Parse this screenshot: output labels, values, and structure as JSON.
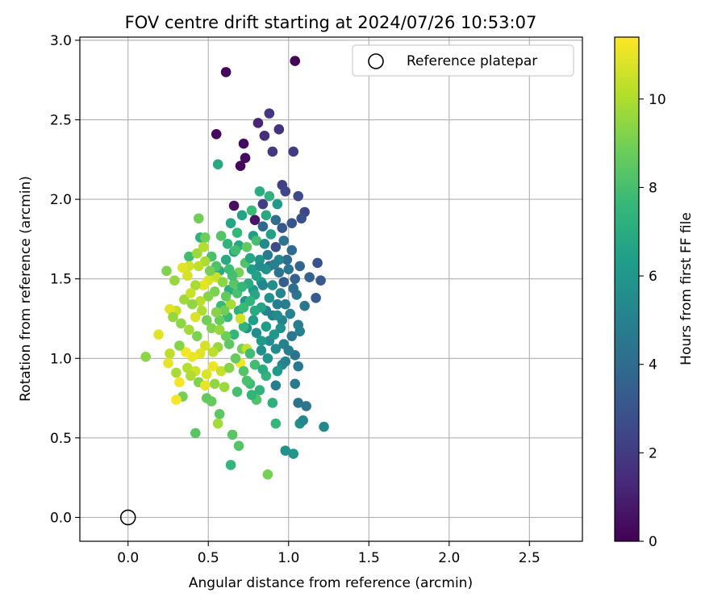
{
  "chart_data": {
    "type": "scatter",
    "title": "FOV centre drift starting at 2024/07/26 10:53:07",
    "xlabel": "Angular distance from reference (arcmin)",
    "ylabel": "Rotation from reference (arcmin)",
    "xlim": [
      -0.3,
      2.83
    ],
    "ylim": [
      -0.15,
      3.02
    ],
    "xticks": [
      0.0,
      0.5,
      1.0,
      1.5,
      2.0,
      2.5
    ],
    "xtick_labels": [
      "0.0",
      "0.5",
      "1.0",
      "1.5",
      "2.0",
      "2.5"
    ],
    "yticks": [
      0.0,
      0.5,
      1.0,
      1.5,
      2.0,
      2.5,
      3.0
    ],
    "ytick_labels": [
      "0.0",
      "0.5",
      "1.0",
      "1.5",
      "2.0",
      "2.5",
      "3.0"
    ],
    "grid": true,
    "legend": {
      "placement": "top-right",
      "entries": [
        "Reference platepar"
      ]
    },
    "reference_point": {
      "x": 0.0,
      "y": 0.0,
      "label": "Reference platepar"
    },
    "colorbar": {
      "label": "Hours from first FF file",
      "range": [
        0,
        11.4
      ],
      "ticks": [
        0,
        2,
        4,
        6,
        8,
        10
      ],
      "tick_labels": [
        "0",
        "2",
        "4",
        "6",
        "8",
        "10"
      ],
      "colormap": "viridis"
    },
    "points": [
      {
        "x": 1.04,
        "y": 2.87,
        "h": 0.1
      },
      {
        "x": 0.61,
        "y": 2.8,
        "h": 0.2
      },
      {
        "x": 0.55,
        "y": 2.41,
        "h": 0.3
      },
      {
        "x": 0.72,
        "y": 2.35,
        "h": 0.3
      },
      {
        "x": 0.73,
        "y": 2.26,
        "h": 0.4
      },
      {
        "x": 0.7,
        "y": 2.21,
        "h": 0.2
      },
      {
        "x": 0.66,
        "y": 1.96,
        "h": 0.5
      },
      {
        "x": 0.79,
        "y": 1.87,
        "h": 0.6
      },
      {
        "x": 0.81,
        "y": 2.48,
        "h": 1.2
      },
      {
        "x": 0.85,
        "y": 2.4,
        "h": 1.5
      },
      {
        "x": 0.94,
        "y": 2.44,
        "h": 1.6
      },
      {
        "x": 0.88,
        "y": 2.54,
        "h": 1.8
      },
      {
        "x": 0.9,
        "y": 2.3,
        "h": 1.9
      },
      {
        "x": 1.03,
        "y": 2.3,
        "h": 2.0
      },
      {
        "x": 0.96,
        "y": 2.09,
        "h": 2.2
      },
      {
        "x": 0.98,
        "y": 2.05,
        "h": 2.4
      },
      {
        "x": 1.06,
        "y": 2.02,
        "h": 2.6
      },
      {
        "x": 0.84,
        "y": 1.97,
        "h": 2.1
      },
      {
        "x": 1.1,
        "y": 1.92,
        "h": 2.5
      },
      {
        "x": 1.08,
        "y": 1.88,
        "h": 2.8
      },
      {
        "x": 1.02,
        "y": 1.85,
        "h": 3.0
      },
      {
        "x": 0.96,
        "y": 1.82,
        "h": 3.1
      },
      {
        "x": 0.92,
        "y": 1.7,
        "h": 2.7
      },
      {
        "x": 1.18,
        "y": 1.6,
        "h": 2.9
      },
      {
        "x": 1.2,
        "y": 1.49,
        "h": 3.2
      },
      {
        "x": 1.17,
        "y": 1.38,
        "h": 3.3
      },
      {
        "x": 1.13,
        "y": 1.51,
        "h": 3.5
      },
      {
        "x": 1.04,
        "y": 1.5,
        "h": 3.6
      },
      {
        "x": 0.97,
        "y": 1.48,
        "h": 3.4
      },
      {
        "x": 0.84,
        "y": 1.83,
        "h": 3.8
      },
      {
        "x": 0.99,
        "y": 1.62,
        "h": 4.0
      },
      {
        "x": 0.88,
        "y": 1.58,
        "h": 4.2
      },
      {
        "x": 0.94,
        "y": 1.54,
        "h": 4.4
      },
      {
        "x": 1.05,
        "y": 1.4,
        "h": 4.5
      },
      {
        "x": 1.1,
        "y": 1.33,
        "h": 4.6
      },
      {
        "x": 0.93,
        "y": 1.34,
        "h": 4.8
      },
      {
        "x": 0.86,
        "y": 1.3,
        "h": 5.0
      },
      {
        "x": 0.9,
        "y": 1.27,
        "h": 5.1
      },
      {
        "x": 0.96,
        "y": 1.24,
        "h": 5.2
      },
      {
        "x": 1.07,
        "y": 1.17,
        "h": 5.0
      },
      {
        "x": 1.04,
        "y": 1.02,
        "h": 4.3
      },
      {
        "x": 1.06,
        "y": 0.95,
        "h": 4.6
      },
      {
        "x": 1.04,
        "y": 0.84,
        "h": 4.7
      },
      {
        "x": 0.92,
        "y": 0.83,
        "h": 4.9
      },
      {
        "x": 1.06,
        "y": 0.72,
        "h": 4.4
      },
      {
        "x": 1.11,
        "y": 0.7,
        "h": 4.5
      },
      {
        "x": 1.22,
        "y": 0.57,
        "h": 5.4
      },
      {
        "x": 1.07,
        "y": 0.59,
        "h": 5.6
      },
      {
        "x": 1.09,
        "y": 0.61,
        "h": 5.3
      },
      {
        "x": 0.98,
        "y": 0.42,
        "h": 5.8
      },
      {
        "x": 1.03,
        "y": 0.4,
        "h": 5.9
      },
      {
        "x": 0.96,
        "y": 0.96,
        "h": 5.4
      },
      {
        "x": 0.88,
        "y": 1.11,
        "h": 5.5
      },
      {
        "x": 0.83,
        "y": 1.05,
        "h": 5.7
      },
      {
        "x": 0.8,
        "y": 1.16,
        "h": 5.6
      },
      {
        "x": 0.74,
        "y": 1.19,
        "h": 5.9
      },
      {
        "x": 0.73,
        "y": 1.36,
        "h": 6.0
      },
      {
        "x": 0.78,
        "y": 1.43,
        "h": 6.1
      },
      {
        "x": 0.83,
        "y": 1.48,
        "h": 6.2
      },
      {
        "x": 0.77,
        "y": 1.56,
        "h": 6.3
      },
      {
        "x": 0.82,
        "y": 1.62,
        "h": 6.0
      },
      {
        "x": 0.78,
        "y": 1.77,
        "h": 6.4
      },
      {
        "x": 0.89,
        "y": 1.78,
        "h": 6.5
      },
      {
        "x": 0.71,
        "y": 1.9,
        "h": 6.6
      },
      {
        "x": 0.64,
        "y": 1.85,
        "h": 6.7
      },
      {
        "x": 0.56,
        "y": 2.22,
        "h": 6.9
      },
      {
        "x": 0.82,
        "y": 2.05,
        "h": 7.1
      },
      {
        "x": 0.88,
        "y": 2.02,
        "h": 7.3
      },
      {
        "x": 0.69,
        "y": 1.71,
        "h": 6.8
      },
      {
        "x": 0.66,
        "y": 1.67,
        "h": 6.6
      },
      {
        "x": 0.61,
        "y": 1.62,
        "h": 6.9
      },
      {
        "x": 0.57,
        "y": 1.55,
        "h": 7.0
      },
      {
        "x": 0.63,
        "y": 1.43,
        "h": 7.1
      },
      {
        "x": 0.69,
        "y": 1.3,
        "h": 7.2
      },
      {
        "x": 0.72,
        "y": 1.2,
        "h": 7.3
      },
      {
        "x": 0.66,
        "y": 1.15,
        "h": 7.5
      },
      {
        "x": 0.62,
        "y": 1.26,
        "h": 7.6
      },
      {
        "x": 0.58,
        "y": 1.33,
        "h": 7.7
      },
      {
        "x": 0.86,
        "y": 0.89,
        "h": 7.4
      },
      {
        "x": 0.9,
        "y": 0.72,
        "h": 7.2
      },
      {
        "x": 0.92,
        "y": 0.59,
        "h": 7.6
      },
      {
        "x": 0.76,
        "y": 0.84,
        "h": 7.8
      },
      {
        "x": 0.79,
        "y": 0.96,
        "h": 7.9
      },
      {
        "x": 0.68,
        "y": 0.79,
        "h": 8.0
      },
      {
        "x": 0.74,
        "y": 0.86,
        "h": 8.1
      },
      {
        "x": 0.8,
        "y": 0.74,
        "h": 8.2
      },
      {
        "x": 0.64,
        "y": 0.33,
        "h": 7.5
      },
      {
        "x": 0.69,
        "y": 0.45,
        "h": 8.3
      },
      {
        "x": 0.65,
        "y": 0.52,
        "h": 8.4
      },
      {
        "x": 0.57,
        "y": 0.65,
        "h": 8.5
      },
      {
        "x": 0.52,
        "y": 0.73,
        "h": 8.7
      },
      {
        "x": 0.49,
        "y": 0.75,
        "h": 8.6
      },
      {
        "x": 0.42,
        "y": 0.53,
        "h": 8.4
      },
      {
        "x": 0.87,
        "y": 0.27,
        "h": 9.0
      },
      {
        "x": 0.56,
        "y": 0.59,
        "h": 9.8
      },
      {
        "x": 0.45,
        "y": 1.76,
        "h": 7.2
      },
      {
        "x": 0.48,
        "y": 1.76,
        "h": 8.8
      },
      {
        "x": 0.44,
        "y": 1.88,
        "h": 8.9
      },
      {
        "x": 0.38,
        "y": 1.64,
        "h": 7.9
      },
      {
        "x": 0.43,
        "y": 1.66,
        "h": 9.7
      },
      {
        "x": 0.47,
        "y": 1.7,
        "h": 10.1
      },
      {
        "x": 0.52,
        "y": 1.64,
        "h": 8.1
      },
      {
        "x": 0.48,
        "y": 1.61,
        "h": 9.9
      },
      {
        "x": 0.44,
        "y": 1.58,
        "h": 10.3
      },
      {
        "x": 0.38,
        "y": 1.58,
        "h": 10.6
      },
      {
        "x": 0.34,
        "y": 1.57,
        "h": 10.9
      },
      {
        "x": 0.37,
        "y": 1.52,
        "h": 10.7
      },
      {
        "x": 0.29,
        "y": 1.49,
        "h": 9.6
      },
      {
        "x": 0.24,
        "y": 1.55,
        "h": 9.2
      },
      {
        "x": 0.5,
        "y": 1.49,
        "h": 10.8
      },
      {
        "x": 0.47,
        "y": 1.46,
        "h": 11.0
      },
      {
        "x": 0.55,
        "y": 1.51,
        "h": 10.5
      },
      {
        "x": 0.59,
        "y": 1.48,
        "h": 9.4
      },
      {
        "x": 0.54,
        "y": 1.42,
        "h": 9.1
      },
      {
        "x": 0.5,
        "y": 1.39,
        "h": 9.3
      },
      {
        "x": 0.45,
        "y": 1.36,
        "h": 10.2
      },
      {
        "x": 0.4,
        "y": 1.34,
        "h": 9.5
      },
      {
        "x": 0.35,
        "y": 1.37,
        "h": 9.7
      },
      {
        "x": 0.3,
        "y": 1.3,
        "h": 10.4
      },
      {
        "x": 0.26,
        "y": 1.31,
        "h": 10.9
      },
      {
        "x": 0.28,
        "y": 1.26,
        "h": 9.6
      },
      {
        "x": 0.33,
        "y": 1.22,
        "h": 9.4
      },
      {
        "x": 0.38,
        "y": 1.18,
        "h": 9.8
      },
      {
        "x": 0.43,
        "y": 1.14,
        "h": 9.1
      },
      {
        "x": 0.49,
        "y": 1.24,
        "h": 8.9
      },
      {
        "x": 0.52,
        "y": 1.19,
        "h": 9.2
      },
      {
        "x": 0.57,
        "y": 1.24,
        "h": 8.7
      },
      {
        "x": 0.61,
        "y": 1.14,
        "h": 8.8
      },
      {
        "x": 0.56,
        "y": 1.07,
        "h": 9.6
      },
      {
        "x": 0.53,
        "y": 1.04,
        "h": 10.2
      },
      {
        "x": 0.48,
        "y": 1.08,
        "h": 10.7
      },
      {
        "x": 0.45,
        "y": 1.03,
        "h": 10.9
      },
      {
        "x": 0.4,
        "y": 1.01,
        "h": 11.1
      },
      {
        "x": 0.36,
        "y": 1.04,
        "h": 11.2
      },
      {
        "x": 0.32,
        "y": 1.08,
        "h": 9.3
      },
      {
        "x": 0.26,
        "y": 1.03,
        "h": 10.3
      },
      {
        "x": 0.19,
        "y": 1.15,
        "h": 10.9
      },
      {
        "x": 0.11,
        "y": 1.01,
        "h": 9.4
      },
      {
        "x": 0.25,
        "y": 0.97,
        "h": 11.0
      },
      {
        "x": 0.3,
        "y": 0.91,
        "h": 9.9
      },
      {
        "x": 0.37,
        "y": 0.94,
        "h": 10.1
      },
      {
        "x": 0.42,
        "y": 0.92,
        "h": 10.6
      },
      {
        "x": 0.39,
        "y": 0.89,
        "h": 10.0
      },
      {
        "x": 0.32,
        "y": 0.85,
        "h": 11.3
      },
      {
        "x": 0.44,
        "y": 0.85,
        "h": 9.2
      },
      {
        "x": 0.49,
        "y": 0.9,
        "h": 10.8
      },
      {
        "x": 0.53,
        "y": 0.95,
        "h": 11.1
      },
      {
        "x": 0.58,
        "y": 0.92,
        "h": 10.4
      },
      {
        "x": 0.63,
        "y": 0.94,
        "h": 9.3
      },
      {
        "x": 0.7,
        "y": 0.97,
        "h": 11.2
      },
      {
        "x": 0.6,
        "y": 0.82,
        "h": 9.7
      },
      {
        "x": 0.54,
        "y": 0.84,
        "h": 9.5
      },
      {
        "x": 0.48,
        "y": 0.83,
        "h": 11.0
      },
      {
        "x": 0.34,
        "y": 0.76,
        "h": 9.0
      },
      {
        "x": 0.3,
        "y": 0.74,
        "h": 11.3
      },
      {
        "x": 0.71,
        "y": 1.06,
        "h": 9.0
      },
      {
        "x": 0.74,
        "y": 1.06,
        "h": 10.4
      },
      {
        "x": 0.7,
        "y": 1.25,
        "h": 10.6
      },
      {
        "x": 0.64,
        "y": 1.34,
        "h": 9.9
      },
      {
        "x": 0.61,
        "y": 1.39,
        "h": 8.6
      },
      {
        "x": 0.66,
        "y": 1.47,
        "h": 8.4
      },
      {
        "x": 0.69,
        "y": 1.54,
        "h": 9.0
      },
      {
        "x": 0.73,
        "y": 1.6,
        "h": 8.2
      },
      {
        "x": 0.63,
        "y": 1.56,
        "h": 7.8
      },
      {
        "x": 0.58,
        "y": 1.77,
        "h": 8.3
      },
      {
        "x": 0.62,
        "y": 1.72,
        "h": 7.4
      },
      {
        "x": 0.68,
        "y": 1.79,
        "h": 7.6
      },
      {
        "x": 0.74,
        "y": 1.7,
        "h": 8.6
      },
      {
        "x": 0.8,
        "y": 1.74,
        "h": 8.0
      },
      {
        "x": 0.76,
        "y": 1.63,
        "h": 6.7
      },
      {
        "x": 0.8,
        "y": 1.52,
        "h": 6.5
      },
      {
        "x": 0.86,
        "y": 1.56,
        "h": 5.8
      },
      {
        "x": 0.9,
        "y": 1.46,
        "h": 5.6
      },
      {
        "x": 0.95,
        "y": 1.41,
        "h": 5.3
      },
      {
        "x": 1.01,
        "y": 1.28,
        "h": 5.0
      },
      {
        "x": 1.06,
        "y": 1.21,
        "h": 4.8
      },
      {
        "x": 1.02,
        "y": 1.14,
        "h": 4.6
      },
      {
        "x": 0.97,
        "y": 1.09,
        "h": 5.1
      },
      {
        "x": 0.92,
        "y": 1.06,
        "h": 5.4
      },
      {
        "x": 0.87,
        "y": 1.0,
        "h": 5.9
      },
      {
        "x": 0.83,
        "y": 1.11,
        "h": 6.2
      },
      {
        "x": 0.78,
        "y": 1.24,
        "h": 6.4
      },
      {
        "x": 0.83,
        "y": 1.32,
        "h": 6.6
      },
      {
        "x": 0.88,
        "y": 1.38,
        "h": 5.7
      },
      {
        "x": 0.93,
        "y": 1.27,
        "h": 5.5
      },
      {
        "x": 0.98,
        "y": 1.34,
        "h": 4.9
      },
      {
        "x": 1.03,
        "y": 1.44,
        "h": 4.1
      },
      {
        "x": 1.07,
        "y": 1.58,
        "h": 3.7
      },
      {
        "x": 1.02,
        "y": 1.68,
        "h": 3.9
      },
      {
        "x": 0.97,
        "y": 1.74,
        "h": 4.3
      },
      {
        "x": 0.92,
        "y": 1.87,
        "h": 4.0
      },
      {
        "x": 0.87,
        "y": 1.65,
        "h": 4.7
      },
      {
        "x": 0.84,
        "y": 1.46,
        "h": 5.2
      },
      {
        "x": 0.79,
        "y": 1.4,
        "h": 6.8
      },
      {
        "x": 0.75,
        "y": 1.47,
        "h": 7.0
      },
      {
        "x": 0.72,
        "y": 1.32,
        "h": 7.7
      },
      {
        "x": 0.68,
        "y": 1.41,
        "h": 8.1
      },
      {
        "x": 0.6,
        "y": 1.3,
        "h": 8.9
      },
      {
        "x": 0.57,
        "y": 1.18,
        "h": 9.6
      },
      {
        "x": 0.63,
        "y": 1.09,
        "h": 8.5
      },
      {
        "x": 0.67,
        "y": 1.0,
        "h": 8.7
      },
      {
        "x": 0.72,
        "y": 0.92,
        "h": 8.3
      },
      {
        "x": 0.76,
        "y": 1.03,
        "h": 7.8
      },
      {
        "x": 0.86,
        "y": 1.2,
        "h": 6.3
      },
      {
        "x": 0.91,
        "y": 1.15,
        "h": 6.0
      },
      {
        "x": 0.95,
        "y": 1.19,
        "h": 5.7
      },
      {
        "x": 1.0,
        "y": 1.05,
        "h": 4.9
      },
      {
        "x": 0.98,
        "y": 0.98,
        "h": 5.1
      },
      {
        "x": 0.93,
        "y": 0.92,
        "h": 6.1
      },
      {
        "x": 0.84,
        "y": 0.93,
        "h": 7.0
      },
      {
        "x": 0.82,
        "y": 0.8,
        "h": 7.3
      },
      {
        "x": 0.77,
        "y": 0.77,
        "h": 7.5
      },
      {
        "x": 0.67,
        "y": 1.68,
        "h": 7.9
      },
      {
        "x": 0.86,
        "y": 1.9,
        "h": 6.9
      },
      {
        "x": 0.93,
        "y": 1.97,
        "h": 6.2
      },
      {
        "x": 0.77,
        "y": 1.93,
        "h": 7.7
      },
      {
        "x": 0.94,
        "y": 1.62,
        "h": 5.2
      },
      {
        "x": 1.0,
        "y": 1.56,
        "h": 4.5
      },
      {
        "x": 0.91,
        "y": 1.59,
        "h": 4.8
      },
      {
        "x": 0.85,
        "y": 1.72,
        "h": 5.4
      },
      {
        "x": 0.82,
        "y": 1.58,
        "h": 5.6
      },
      {
        "x": 0.79,
        "y": 1.3,
        "h": 6.9
      },
      {
        "x": 0.76,
        "y": 1.36,
        "h": 7.4
      },
      {
        "x": 0.71,
        "y": 1.45,
        "h": 7.6
      },
      {
        "x": 0.65,
        "y": 1.52,
        "h": 8.0
      },
      {
        "x": 0.55,
        "y": 1.58,
        "h": 8.2
      },
      {
        "x": 0.51,
        "y": 1.55,
        "h": 9.0
      },
      {
        "x": 0.42,
        "y": 1.46,
        "h": 9.9
      },
      {
        "x": 0.39,
        "y": 1.41,
        "h": 10.5
      },
      {
        "x": 0.46,
        "y": 1.3,
        "h": 10.0
      },
      {
        "x": 0.42,
        "y": 1.26,
        "h": 10.8
      },
      {
        "x": 0.55,
        "y": 1.29,
        "h": 9.3
      }
    ]
  }
}
